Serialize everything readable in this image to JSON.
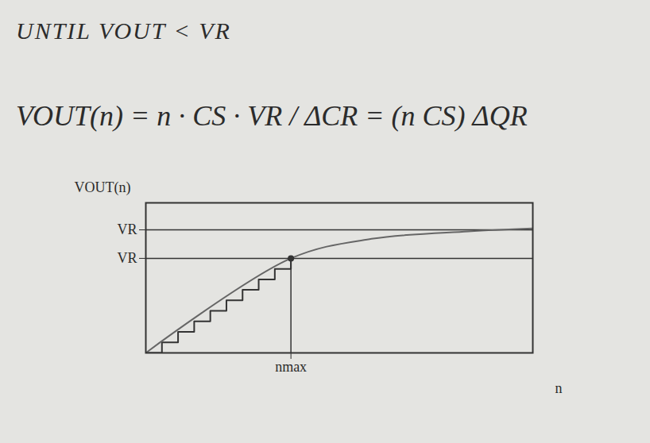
{
  "chart_data": {
    "type": "step",
    "annotations": [
      "UNTIL   VOUT < VR",
      "VOUT(n) = n · CS · VR / ΔCR = (n CS) ΔQR"
    ],
    "x_label": "n",
    "y_label": "VOUT(n)",
    "xlim": [
      0,
      24
    ],
    "ylim": [
      0,
      10
    ],
    "xticks": [
      {
        "value": 9,
        "label": "nmax"
      }
    ],
    "yticks": [
      {
        "value": 6.3,
        "label": "VR"
      },
      {
        "value": 8.2,
        "label": "VR"
      }
    ],
    "grid": true,
    "color": "#333333",
    "series": [
      {
        "type": "step",
        "color": "#333333",
        "x": [
          0,
          1,
          2,
          3,
          4,
          5,
          6,
          7,
          8,
          9
        ],
        "values": [
          0,
          0.7,
          1.4,
          2.1,
          2.8,
          3.5,
          4.2,
          4.9,
          5.6,
          6.3
        ]
      },
      {
        "type": "line",
        "color": "#666666",
        "x": [
          0,
          9,
          14,
          20,
          24
        ],
        "values": [
          0,
          6.3,
          7.6,
          8.1,
          8.3
        ]
      }
    ]
  }
}
